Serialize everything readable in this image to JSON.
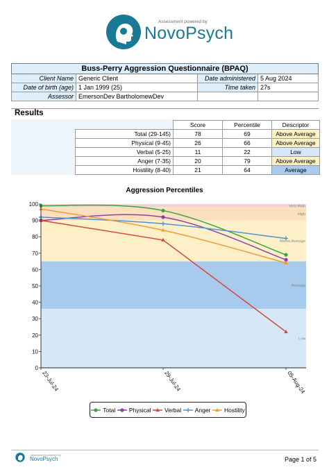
{
  "header": {
    "powered_by": "Assessment powered by",
    "brand_name": "NovoPsych"
  },
  "info": {
    "title": "Buss-Perry Aggression Questionnaire  (BPAQ)",
    "client_name_label": "Client Name",
    "client_name": "Generic Client",
    "date_administered_label": "Date administered",
    "date_administered": "5 Aug 2024",
    "dob_label": "Date of birth (age)",
    "dob": "1 Jan 1999 (25)",
    "time_taken_label": "Time taken",
    "time_taken": "27s",
    "assessor_label": "Assessor",
    "assessor": "EmersonDev BartholomewDev"
  },
  "results": {
    "title": "Results",
    "headers": [
      "Score",
      "Percentile",
      "Descriptor"
    ],
    "rows": [
      {
        "name": "Total (29-145)",
        "score": "78",
        "percentile": "69",
        "descriptor": "Above Average",
        "color": "#fff2c4"
      },
      {
        "name": "Physical (9-45)",
        "score": "26",
        "percentile": "66",
        "descriptor": "Above Average",
        "color": "#fff2c4"
      },
      {
        "name": "Verbal (5-25)",
        "score": "11",
        "percentile": "22",
        "descriptor": "Low",
        "color": "#d6e8f8"
      },
      {
        "name": "Anger (7-35)",
        "score": "20",
        "percentile": "79",
        "descriptor": "Above Average",
        "color": "#fff2c4"
      },
      {
        "name": "Hostility (8-40)",
        "score": "21",
        "percentile": "64",
        "descriptor": "Average",
        "color": "#a9cbee"
      }
    ]
  },
  "chart_data": {
    "type": "line",
    "title": "Aggression Percentiles",
    "x": [
      "23-Jul-24",
      "29-Jul-24",
      "05-Aug-24"
    ],
    "ylim": [
      0,
      100
    ],
    "yticks": [
      0,
      10,
      20,
      30,
      40,
      50,
      60,
      70,
      80,
      90,
      100
    ],
    "bands": [
      {
        "label": "Very High",
        "from": 98,
        "to": 100,
        "color": "#f2d2d2"
      },
      {
        "label": "High",
        "from": 90,
        "to": 98,
        "color": "#fae0bf"
      },
      {
        "label": "Above Average",
        "from": 65,
        "to": 90,
        "color": "#fdf0c8"
      },
      {
        "label": "Average",
        "from": 36,
        "to": 65,
        "color": "#a8caec"
      },
      {
        "label": "Low",
        "from": 0,
        "to": 36,
        "color": "#d6e7f8"
      }
    ],
    "series": [
      {
        "name": "Total",
        "color": "#3da33d",
        "marker": "circle",
        "values": [
          99,
          96,
          69
        ]
      },
      {
        "name": "Physical",
        "color": "#8e3fa6",
        "marker": "circle",
        "values": [
          90,
          92,
          66
        ]
      },
      {
        "name": "Verbal",
        "color": "#d6463a",
        "marker": "triangle",
        "values": [
          90,
          78,
          22
        ]
      },
      {
        "name": "Anger",
        "color": "#4f95d2",
        "marker": "plus",
        "values": [
          92,
          88,
          79
        ]
      },
      {
        "name": "Hostility",
        "color": "#f09a3a",
        "marker": "triangle",
        "values": [
          97,
          84,
          64
        ]
      }
    ]
  },
  "footer": {
    "powered_by": "Assessment powered by",
    "brand_name": "NovoPsych",
    "page": "Page 1 of 5"
  }
}
